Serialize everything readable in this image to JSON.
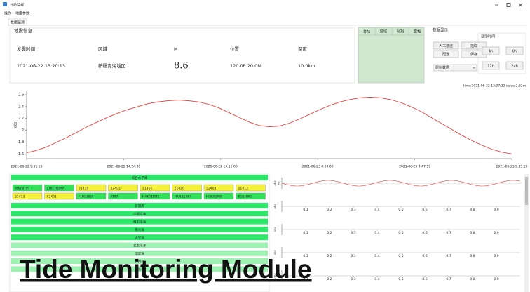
{
  "window": {
    "title": "台站监视"
  },
  "menu": [
    "操作",
    "地震参数"
  ],
  "tab": "数据监测",
  "quake": {
    "legend": "地震信息",
    "headers": [
      "发震时间",
      "区域",
      "M",
      "位置",
      "深度"
    ],
    "values": [
      "2021-06-22 13:20:13",
      "新疆青海地区",
      "8.6",
      "120.0E 20.0N",
      "10.0km"
    ]
  },
  "stations": {
    "headers": [
      "台站",
      "区域",
      "时刻",
      "震幅"
    ]
  },
  "display": {
    "legend": "数据显示",
    "buttons": [
      "人工速递",
      "拍取",
      "配置",
      "保存"
    ],
    "dropdown": "原始数据",
    "time_legend": "显示时间",
    "time_buttons": [
      "4h",
      "8h",
      "12h",
      "24h"
    ]
  },
  "cursor": "time:2021-06-22 13:37:22  value:2.62m",
  "chart_data": {
    "type": "line",
    "ylabel": "obs",
    "color": "#e8413c",
    "x": [
      0,
      0.5,
      1,
      1.5,
      2,
      2.5,
      3,
      3.5,
      4,
      4.5,
      5,
      5.5,
      6,
      6.5,
      7,
      7.5,
      8,
      8.5,
      9,
      9.5,
      10,
      10.5,
      11,
      11.5,
      12,
      12.5,
      13,
      13.5,
      14,
      14.5,
      15,
      15.5,
      16,
      16.5,
      17,
      17.5,
      18,
      18.5,
      19,
      19.5,
      20,
      20.5,
      21,
      21.5,
      22,
      22.5,
      23,
      23.5,
      24
    ],
    "values": [
      1.62,
      1.66,
      1.72,
      1.8,
      1.88,
      1.97,
      2.06,
      2.14,
      2.22,
      2.29,
      2.35,
      2.4,
      2.45,
      2.48,
      2.5,
      2.51,
      2.5,
      2.48,
      2.44,
      2.38,
      2.3,
      2.22,
      2.14,
      2.08,
      2.06,
      2.07,
      2.12,
      2.19,
      2.27,
      2.35,
      2.42,
      2.48,
      2.52,
      2.55,
      2.56,
      2.55,
      2.52,
      2.47,
      2.4,
      2.32,
      2.22,
      2.12,
      2.02,
      1.92,
      1.83,
      1.75,
      1.68,
      1.63,
      1.6
    ],
    "xlim": [
      0,
      24
    ],
    "ylim": [
      1.52,
      2.66
    ],
    "yticks": [
      1.6,
      1.8,
      2,
      2.2,
      2.4,
      2.6
    ],
    "xticks": [
      {
        "value": 0,
        "label": "2021-06-22 9:35:59"
      },
      {
        "value": 4.8,
        "label": "2021-06-22 14:24:00"
      },
      {
        "value": 9.6,
        "label": "2021-06-22 19:12:00"
      },
      {
        "value": 14.4,
        "label": "2021-06-23 0:00:00"
      },
      {
        "value": 19.2,
        "label": "2021-06-23 4:47:59"
      },
      {
        "value": 24,
        "label": "2021-06-23 9:35:59"
      }
    ]
  },
  "stations_panel": {
    "header": "综合水平库",
    "row1": [
      {
        "label": "ABASHIRI",
        "color": "#33e05a"
      },
      {
        "label": "CHICHIJIMA",
        "color": "#33e05a"
      },
      {
        "label": "21419",
        "color": "#f5f03a"
      },
      {
        "label": "52402",
        "color": "#f5f03a"
      },
      {
        "label": "21401",
        "color": "#f5f03a"
      },
      {
        "label": "21420",
        "color": "#f5f03a"
      },
      {
        "label": "52403",
        "color": "#f5f03a"
      },
      {
        "label": "21413",
        "color": "#f5f03a"
      }
    ],
    "row2": [
      {
        "label": "21413",
        "color": "#f5f03a"
      },
      {
        "label": "52401",
        "color": "#f5f03a"
      },
      {
        "label": "FUKAURA",
        "color": "#33e05a"
      },
      {
        "label": "ATKA",
        "color": "#33e05a"
      },
      {
        "label": "HAKODATE",
        "color": "#33e05a"
      },
      {
        "label": "HANASAKI",
        "color": "#33e05a"
      },
      {
        "label": "HOSOJIMA",
        "color": "#33e05a"
      },
      {
        "label": "KUSHIRO",
        "color": "#33e05a"
      }
    ],
    "groups": [
      {
        "label": "新疆库",
        "color": "#2ee66a"
      },
      {
        "label": "中国沿海",
        "color": "#2ee66a"
      },
      {
        "label": "南中国海",
        "color": "#2ee66a"
      },
      {
        "label": "南大洋",
        "color": "#2ee66a"
      },
      {
        "label": "太平洋",
        "color": "#2ee66a"
      },
      {
        "label": "北太平洋",
        "color": "#9ef0b3"
      },
      {
        "label": "印度洋",
        "color": "#9ef0b3"
      },
      {
        "label": "大西洋",
        "color": "#9ef0b3"
      },
      {
        "label": "北冰洋",
        "color": "#9ef0b3"
      }
    ]
  },
  "mini_charts": {
    "ylabel": "obs",
    "top_ytick": 2,
    "count": 6,
    "xlim": [
      0,
      1
    ],
    "xticks": [
      0.1,
      0.2,
      0.3,
      0.4,
      0.5,
      0.6,
      0.7,
      0.8,
      0.9
    ]
  },
  "caption": "Tide Monitoring Module"
}
